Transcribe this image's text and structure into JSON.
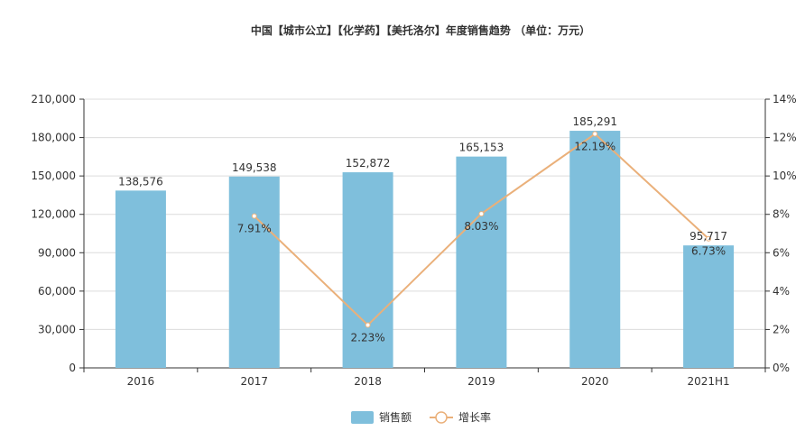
{
  "chart_data": {
    "type": "bar",
    "title": "中国【城市公立】【化学药】【美托洛尔】年度销售趋势 （单位：万元）",
    "categories": [
      "2016",
      "2017",
      "2018",
      "2019",
      "2020",
      "2021H1"
    ],
    "series": [
      {
        "name": "销售额",
        "type": "bar",
        "axis": "left",
        "values": [
          138576,
          149538,
          152872,
          165153,
          185291,
          95717
        ],
        "labels": [
          "138,576",
          "149,538",
          "152,872",
          "165,153",
          "185,291",
          "95,717"
        ],
        "color": "#7fbfdc"
      },
      {
        "name": "增长率",
        "type": "line",
        "axis": "right",
        "values": [
          null,
          7.91,
          2.23,
          8.03,
          12.19,
          6.73
        ],
        "labels": [
          "",
          "7.91%",
          "2.23%",
          "8.03%",
          "12.19%",
          "6.73%"
        ],
        "color": "#eab07a"
      }
    ],
    "y_left": {
      "min": 0,
      "max": 210000,
      "ticks": [
        0,
        30000,
        60000,
        90000,
        120000,
        150000,
        180000,
        210000
      ],
      "tick_labels": [
        "0",
        "30,000",
        "60,000",
        "90,000",
        "120,000",
        "150,000",
        "180,000",
        "210,000"
      ]
    },
    "y_right": {
      "min": 0,
      "max": 14,
      "ticks": [
        0,
        2,
        4,
        6,
        8,
        10,
        12,
        14
      ],
      "tick_labels": [
        "0%",
        "2%",
        "4%",
        "6%",
        "8%",
        "10%",
        "12%",
        "14%"
      ]
    },
    "grid": true,
    "legend_position": "bottom-center"
  }
}
